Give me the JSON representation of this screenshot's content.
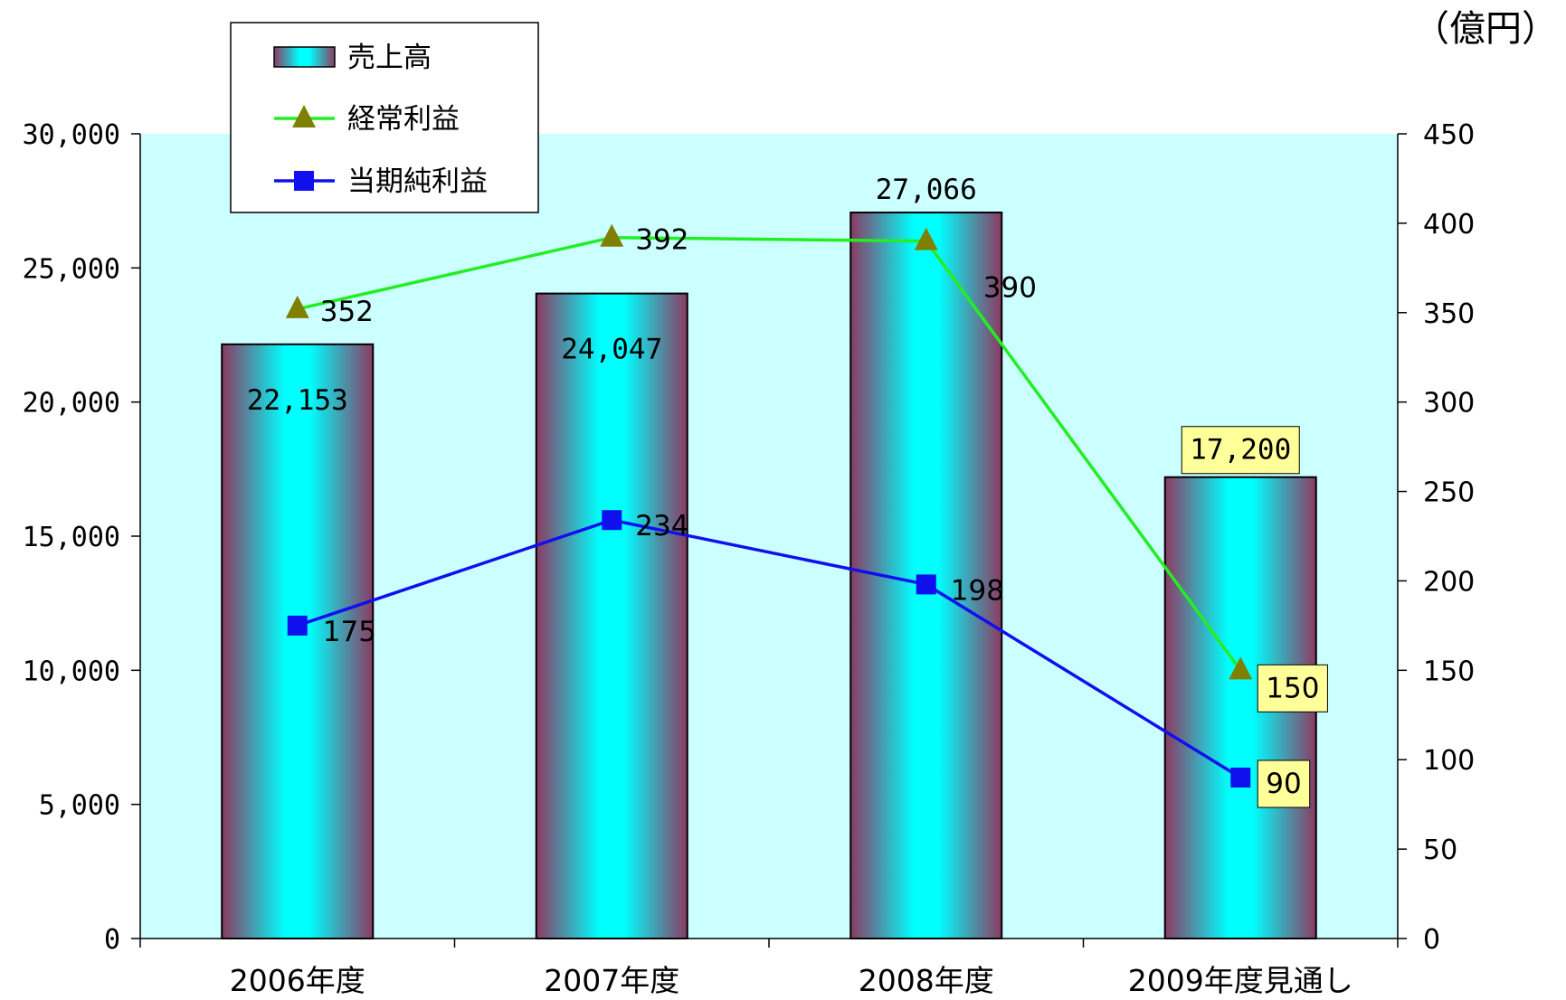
{
  "chart_data": {
    "type": "bar",
    "categories": [
      "2006年度",
      "2007年度",
      "2008年度",
      "2009年度見通し"
    ],
    "unit_label": "（億円）",
    "y_left": {
      "min": 0,
      "max": 30000,
      "step": 5000,
      "ticks": [
        "0",
        "5,000",
        "10,000",
        "15,000",
        "20,000",
        "25,000",
        "30,000"
      ]
    },
    "y_right": {
      "min": 0,
      "max": 450,
      "step": 50,
      "ticks": [
        "0",
        "50",
        "100",
        "150",
        "200",
        "250",
        "300",
        "350",
        "400",
        "450"
      ]
    },
    "grid": false,
    "legend": "top-left",
    "series": [
      {
        "name": "売上高",
        "kind": "bar",
        "axis": "left",
        "values": [
          22153,
          24047,
          27066,
          17200
        ],
        "labels": [
          "22,153",
          "24,047",
          "27,066",
          "17,200"
        ],
        "highlight": [
          false,
          false,
          false,
          true
        ]
      },
      {
        "name": "経常利益",
        "kind": "line",
        "axis": "right",
        "marker": "triangle",
        "color": "#22ee22",
        "marker_color": "#808000",
        "values": [
          352,
          392,
          390,
          150
        ],
        "labels": [
          "352",
          "392",
          "390",
          "150"
        ],
        "highlight": [
          false,
          false,
          false,
          true
        ]
      },
      {
        "name": "当期純利益",
        "kind": "line",
        "axis": "right",
        "marker": "square",
        "color": "#1010ee",
        "marker_color": "#1010ee",
        "values": [
          175,
          234,
          198,
          90
        ],
        "labels": [
          "175",
          "234",
          "198",
          "90"
        ],
        "highlight": [
          false,
          false,
          false,
          true
        ]
      }
    ],
    "colors": {
      "plot_bg": "#ccffff",
      "bar_edge": "#8b3a62",
      "bar_center": "#00ffff",
      "highlight_bg": "#ffff99"
    }
  }
}
